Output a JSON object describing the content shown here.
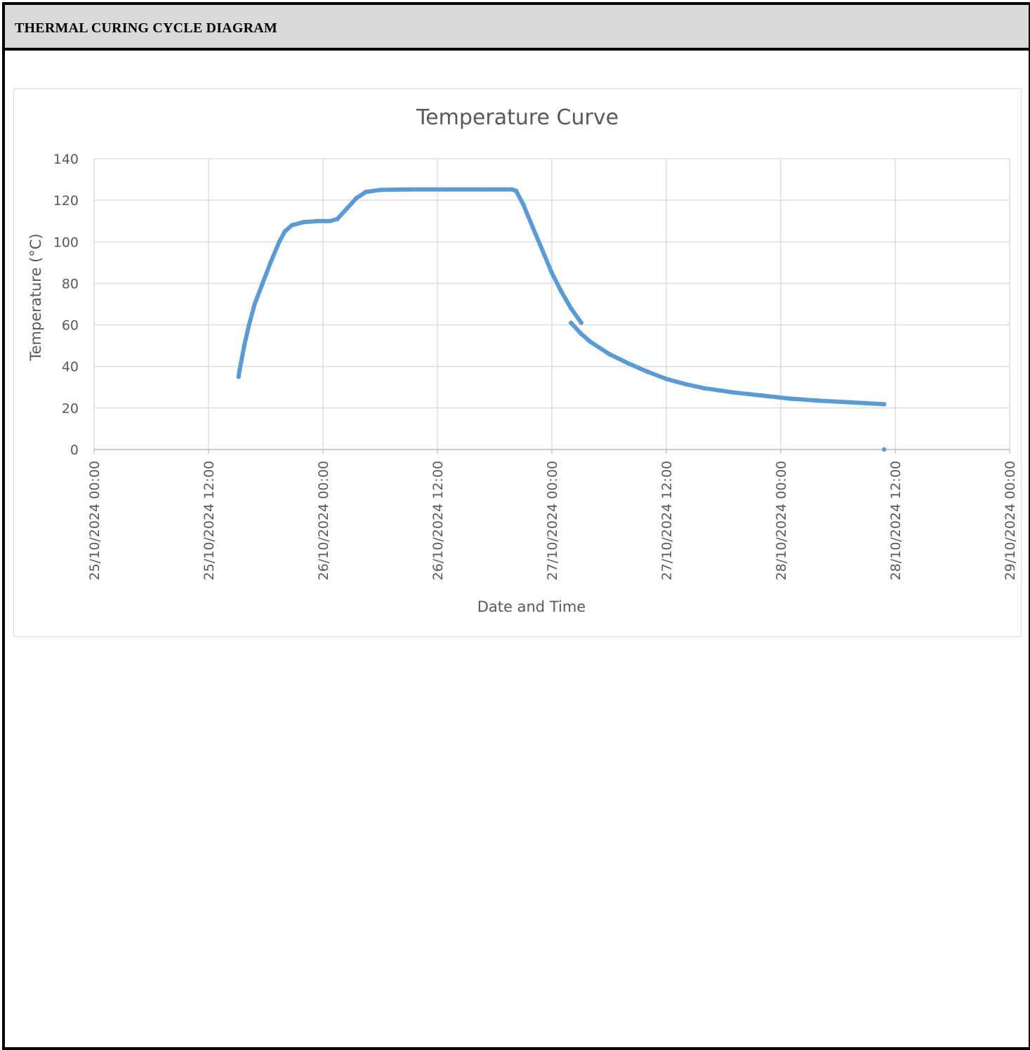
{
  "header": {
    "title": "THERMAL CURING CYCLE DIAGRAM"
  },
  "chart_data": {
    "type": "scatter",
    "title": "Temperature Curve",
    "xlabel": "Date and Time",
    "ylabel": "Temperature (°C)",
    "ylim": [
      0,
      140
    ],
    "yticks": [
      "0",
      "20",
      "40",
      "60",
      "80",
      "100",
      "120",
      "140"
    ],
    "xlim": [
      "25/10/2024 00:00",
      "29/10/2024 00:00"
    ],
    "xticks": [
      "25/10/2024 00:00",
      "25/10/2024 12:00",
      "26/10/2024 00:00",
      "26/10/2024 12:00",
      "27/10/2024 00:00",
      "27/10/2024 12:00",
      "28/10/2024 00:00",
      "28/10/2024 12:00",
      "29/10/2024 00:00"
    ],
    "grid": true,
    "legend": "none",
    "series_color": "#5b9bd5",
    "segments": [
      {
        "points": [
          [
            "25/10/2024 15:09",
            35
          ],
          [
            "25/10/2024 15:15",
            38
          ],
          [
            "25/10/2024 15:25",
            42
          ],
          [
            "25/10/2024 15:45",
            50
          ],
          [
            "25/10/2024 16:15",
            60
          ],
          [
            "25/10/2024 16:50",
            70
          ],
          [
            "25/10/2024 17:40",
            80
          ],
          [
            "25/10/2024 18:30",
            90
          ],
          [
            "25/10/2024 19:25",
            100
          ],
          [
            "25/10/2024 20:00",
            105
          ],
          [
            "25/10/2024 20:45",
            108
          ],
          [
            "25/10/2024 22:00",
            109.5
          ],
          [
            "25/10/2024 23:30",
            110
          ],
          [
            "26/10/2024 00:45",
            110
          ],
          [
            "26/10/2024 01:30",
            111
          ],
          [
            "26/10/2024 02:30",
            116
          ],
          [
            "26/10/2024 03:30",
            121
          ],
          [
            "26/10/2024 04:30",
            124
          ],
          [
            "26/10/2024 06:00",
            125
          ],
          [
            "26/10/2024 09:00",
            125.2
          ],
          [
            "26/10/2024 13:00",
            125.2
          ],
          [
            "26/10/2024 17:00",
            125.2
          ],
          [
            "26/10/2024 19:50",
            125.2
          ],
          [
            "26/10/2024 20:15",
            124.5
          ],
          [
            "26/10/2024 21:00",
            118
          ],
          [
            "26/10/2024 22:00",
            107
          ],
          [
            "26/10/2024 23:00",
            96
          ],
          [
            "27/10/2024 00:00",
            85
          ],
          [
            "27/10/2024 01:00",
            76
          ],
          [
            "27/10/2024 02:00",
            68
          ],
          [
            "27/10/2024 03:05",
            61
          ]
        ]
      },
      {
        "points": [
          [
            "27/10/2024 02:00",
            61
          ],
          [
            "27/10/2024 03:00",
            56
          ],
          [
            "27/10/2024 04:00",
            52
          ],
          [
            "27/10/2024 06:00",
            46
          ],
          [
            "27/10/2024 08:00",
            41.5
          ],
          [
            "27/10/2024 10:00",
            37.5
          ],
          [
            "27/10/2024 12:00",
            34
          ],
          [
            "27/10/2024 14:00",
            31.5
          ],
          [
            "27/10/2024 16:00",
            29.5
          ],
          [
            "27/10/2024 19:00",
            27.5
          ],
          [
            "27/10/2024 22:00",
            26
          ],
          [
            "28/10/2024 01:00",
            24.5
          ],
          [
            "28/10/2024 04:00",
            23.5
          ],
          [
            "28/10/2024 07:00",
            22.8
          ],
          [
            "28/10/2024 09:00",
            22.3
          ],
          [
            "28/10/2024 10:50",
            21.8
          ]
        ]
      },
      {
        "points": [
          [
            "28/10/2024 10:50",
            0
          ]
        ]
      }
    ]
  }
}
